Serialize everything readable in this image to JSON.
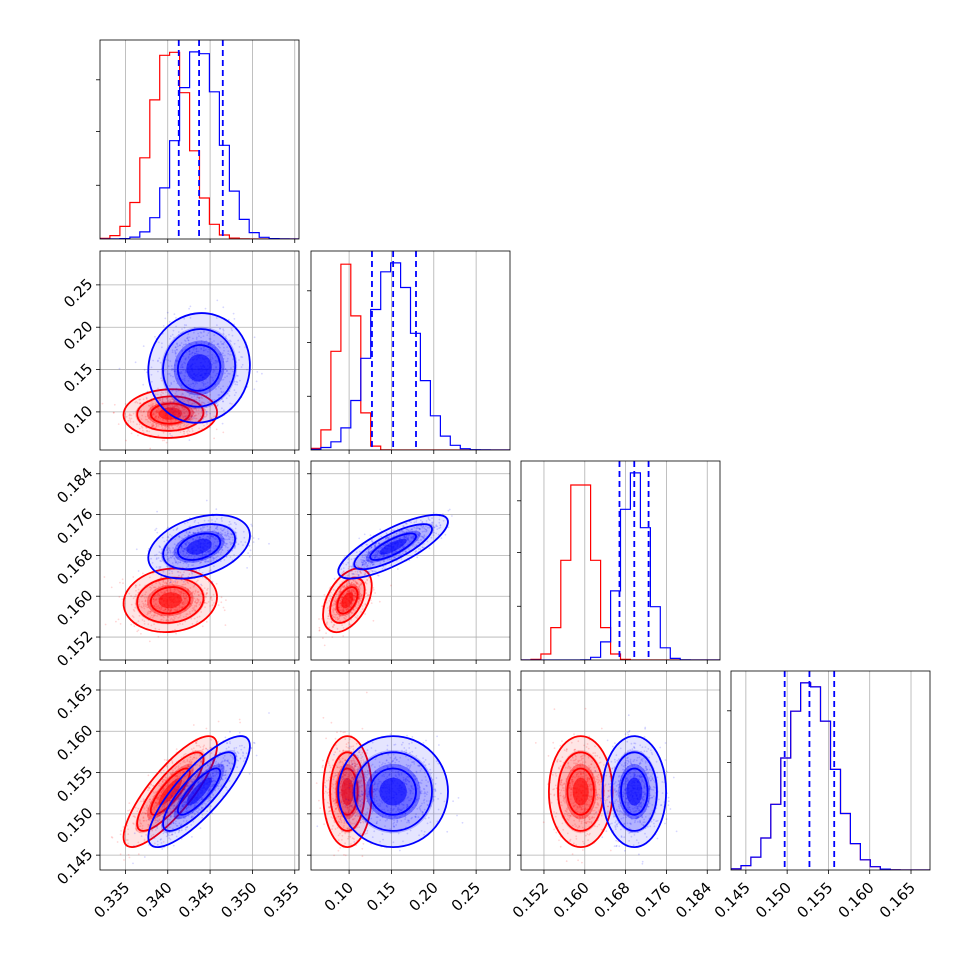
{
  "chart_data": {
    "type": "corner",
    "title": "",
    "parameters": 4,
    "grid": true,
    "series": [
      {
        "color": "#0000ff"
      },
      {
        "color": "#ff0000"
      }
    ],
    "axes": [
      {
        "range": [
          0.332,
          0.3555
        ],
        "ticks": [
          "0.335",
          "0.340",
          "0.345",
          "0.350",
          "0.355"
        ],
        "tick_values": [
          0.335,
          0.34,
          0.345,
          0.35,
          0.355
        ],
        "blue": {
          "mean": 0.3437,
          "sd": 0.0025,
          "quantiles": [
            0.3413,
            0.3437,
            0.3465
          ]
        },
        "red": {
          "mean": 0.3403,
          "sd": 0.0023
        }
      },
      {
        "range": [
          0.055,
          0.29
        ],
        "ticks": [
          "0.10",
          "0.15",
          "0.20",
          "0.25"
        ],
        "tick_values": [
          0.1,
          0.15,
          0.2,
          0.25
        ],
        "blue": {
          "mean": 0.152,
          "sd": 0.027,
          "quantiles": [
            0.127,
            0.152,
            0.179
          ]
        },
        "red": {
          "mean": 0.098,
          "sd": 0.012
        }
      },
      {
        "range": [
          0.1475,
          0.1865
        ],
        "ticks": [
          "0.152",
          "0.160",
          "0.168",
          "0.176",
          "0.184"
        ],
        "tick_values": [
          0.152,
          0.16,
          0.168,
          0.176,
          0.184
        ],
        "blue": {
          "mean": 0.1697,
          "sd": 0.0026,
          "quantiles": [
            0.1668,
            0.1697,
            0.1725
          ]
        },
        "red": {
          "mean": 0.1592,
          "sd": 0.0026
        }
      },
      {
        "range": [
          0.1432,
          0.1673
        ],
        "ticks": [
          "0.145",
          "0.150",
          "0.155",
          "0.160",
          "0.165"
        ],
        "tick_values": [
          0.145,
          0.15,
          0.155,
          0.16,
          0.165
        ],
        "blue": {
          "mean": 0.1527,
          "sd": 0.0028,
          "quantiles": [
            0.1497,
            0.1527,
            0.1557
          ]
        },
        "red": {
          "mean": 0.1527,
          "sd": 0.0028
        }
      }
    ],
    "correlations": {
      "blue": {
        "1-0": 0.05,
        "2-0": 0.35,
        "2-1": 0.78,
        "3-0": 0.82,
        "3-1": 0.0,
        "3-2": 0.0
      },
      "red": {
        "1-0": 0.05,
        "2-0": 0.1,
        "2-1": 0.45,
        "3-0": 0.82,
        "3-1": 0.0,
        "3-2": 0.0
      }
    }
  }
}
